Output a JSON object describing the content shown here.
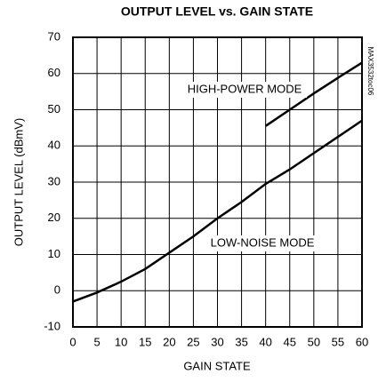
{
  "chart_data": {
    "type": "line",
    "title": "OUTPUT LEVEL vs. GAIN STATE",
    "xlabel": "GAIN STATE",
    "ylabel": "OUTPUT LEVEL (dBmV)",
    "side_label": "MAX3532toc06",
    "xlim": [
      0,
      60
    ],
    "xticks": [
      0,
      5,
      10,
      15,
      20,
      25,
      30,
      35,
      40,
      45,
      50,
      55,
      60
    ],
    "ylim": [
      -10,
      70
    ],
    "yticks": [
      -10,
      0,
      10,
      20,
      30,
      40,
      50,
      60,
      70
    ],
    "grid": true,
    "series": [
      {
        "name": "HIGH-POWER MODE",
        "color": "#000000",
        "x": [
          40,
          45,
          50,
          55,
          60
        ],
        "values": [
          45.5,
          50,
          54.5,
          58.8,
          63
        ]
      },
      {
        "name": "LOW-NOISE MODE",
        "color": "#000000",
        "x": [
          0,
          5,
          10,
          15,
          20,
          25,
          30,
          35,
          40,
          45,
          50,
          55,
          60
        ],
        "values": [
          -3,
          -0.5,
          2.5,
          6,
          10.5,
          15,
          20,
          24.5,
          29.5,
          33.5,
          38,
          42.5,
          47
        ]
      }
    ]
  }
}
